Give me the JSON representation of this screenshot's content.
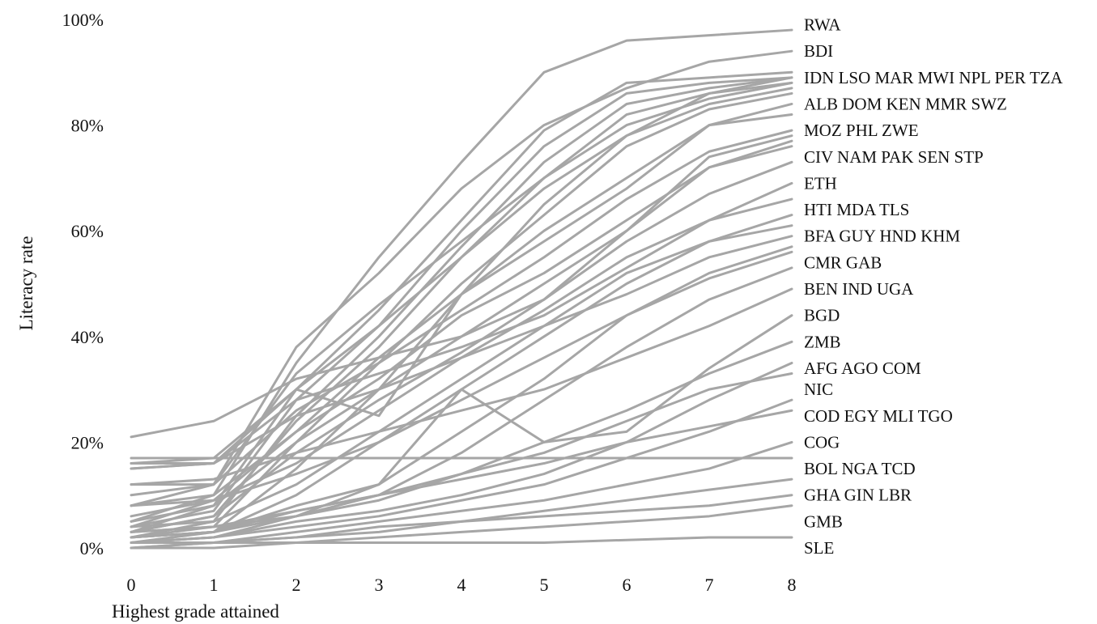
{
  "chart_data": {
    "type": "line",
    "title": "",
    "xlabel": "Highest grade attained",
    "ylabel": "Literacy rate",
    "x": [
      0,
      1,
      2,
      3,
      4,
      5,
      6,
      7,
      8
    ],
    "x_ticks": [
      "0",
      "1",
      "2",
      "3",
      "4",
      "5",
      "6",
      "7",
      "8"
    ],
    "y_ticks": [
      "0%",
      "20%",
      "40%",
      "60%",
      "80%",
      "100%"
    ],
    "xlim": [
      0,
      8
    ],
    "ylim": [
      0,
      1
    ],
    "grid": false,
    "line_color": "#a6a6a6",
    "end_labels": [
      {
        "text": "RWA",
        "y": 0.99
      },
      {
        "text": "BDI",
        "y": 0.94
      },
      {
        "text": "IDN LSO MAR MWI NPL PER TZA",
        "y": 0.89
      },
      {
        "text": "ALB DOM KEN MMR SWZ",
        "y": 0.84
      },
      {
        "text": "MOZ PHL ZWE",
        "y": 0.79
      },
      {
        "text": "CIV NAM PAK SEN STP",
        "y": 0.74
      },
      {
        "text": "ETH",
        "y": 0.69
      },
      {
        "text": "HTI MDA TLS",
        "y": 0.64
      },
      {
        "text": "BFA GUY HND KHM",
        "y": 0.59
      },
      {
        "text": "CMR GAB",
        "y": 0.54
      },
      {
        "text": "BEN IND UGA",
        "y": 0.49
      },
      {
        "text": "BGD",
        "y": 0.44
      },
      {
        "text": "ZMB",
        "y": 0.39
      },
      {
        "text": "AFG AGO COM",
        "y": 0.34
      },
      {
        "text": "NIC",
        "y": 0.3
      },
      {
        "text": "COD EGY MLI TGO",
        "y": 0.25
      },
      {
        "text": "COG",
        "y": 0.2
      },
      {
        "text": "BOL NGA TCD",
        "y": 0.15
      },
      {
        "text": "GHA GIN LBR",
        "y": 0.1
      },
      {
        "text": "GMB",
        "y": 0.05
      },
      {
        "text": "SLE",
        "y": 0.0
      }
    ],
    "series": [
      {
        "values": [
          0.05,
          0.1,
          0.35,
          0.55,
          0.73,
          0.9,
          0.96,
          0.97,
          0.98
        ]
      },
      {
        "values": [
          0.08,
          0.12,
          0.38,
          0.52,
          0.68,
          0.8,
          0.87,
          0.92,
          0.94
        ]
      },
      {
        "values": [
          0.03,
          0.08,
          0.3,
          0.45,
          0.62,
          0.79,
          0.88,
          0.89,
          0.9
        ]
      },
      {
        "values": [
          0.04,
          0.07,
          0.28,
          0.42,
          0.6,
          0.76,
          0.86,
          0.88,
          0.89
        ]
      },
      {
        "values": [
          0.02,
          0.05,
          0.25,
          0.4,
          0.57,
          0.73,
          0.84,
          0.87,
          0.89
        ]
      },
      {
        "values": [
          0.1,
          0.12,
          0.33,
          0.46,
          0.58,
          0.7,
          0.82,
          0.86,
          0.88
        ]
      },
      {
        "values": [
          0.03,
          0.06,
          0.24,
          0.38,
          0.55,
          0.7,
          0.8,
          0.85,
          0.88
        ]
      },
      {
        "values": [
          0.15,
          0.16,
          0.3,
          0.42,
          0.55,
          0.68,
          0.78,
          0.84,
          0.87
        ]
      },
      {
        "values": [
          0.01,
          0.03,
          0.15,
          0.3,
          0.48,
          0.65,
          0.78,
          0.86,
          0.89
        ]
      },
      {
        "values": [
          0.02,
          0.04,
          0.2,
          0.35,
          0.5,
          0.63,
          0.76,
          0.83,
          0.86
        ]
      },
      {
        "values": [
          0.16,
          0.17,
          0.3,
          0.25,
          0.48,
          0.6,
          0.7,
          0.8,
          0.84
        ]
      },
      {
        "values": [
          0.04,
          0.09,
          0.22,
          0.36,
          0.48,
          0.58,
          0.68,
          0.8,
          0.82
        ]
      },
      {
        "values": [
          0.21,
          0.24,
          0.32,
          0.36,
          0.4,
          0.47,
          0.6,
          0.74,
          0.78
        ]
      },
      {
        "values": [
          0.12,
          0.12,
          0.26,
          0.35,
          0.45,
          0.55,
          0.66,
          0.75,
          0.79
        ]
      },
      {
        "values": [
          0.08,
          0.1,
          0.22,
          0.32,
          0.44,
          0.52,
          0.62,
          0.72,
          0.77
        ]
      },
      {
        "values": [
          0.05,
          0.08,
          0.2,
          0.3,
          0.4,
          0.5,
          0.6,
          0.72,
          0.76
        ]
      },
      {
        "values": [
          0.03,
          0.06,
          0.18,
          0.28,
          0.37,
          0.47,
          0.58,
          0.67,
          0.73
        ]
      },
      {
        "values": [
          0.15,
          0.16,
          0.28,
          0.33,
          0.38,
          0.44,
          0.53,
          0.62,
          0.69
        ]
      },
      {
        "values": [
          0.06,
          0.09,
          0.16,
          0.26,
          0.36,
          0.45,
          0.55,
          0.62,
          0.66
        ]
      },
      {
        "values": [
          0.02,
          0.03,
          0.1,
          0.2,
          0.3,
          0.4,
          0.5,
          0.58,
          0.63
        ]
      },
      {
        "values": [
          0.04,
          0.05,
          0.12,
          0.22,
          0.32,
          0.42,
          0.52,
          0.58,
          0.61
        ]
      },
      {
        "values": [
          0.16,
          0.16,
          0.25,
          0.3,
          0.36,
          0.42,
          0.48,
          0.55,
          0.59
        ]
      },
      {
        "values": [
          0.01,
          0.02,
          0.06,
          0.12,
          0.22,
          0.32,
          0.44,
          0.52,
          0.57
        ]
      },
      {
        "values": [
          0.08,
          0.09,
          0.14,
          0.2,
          0.28,
          0.36,
          0.44,
          0.51,
          0.56
        ]
      },
      {
        "values": [
          0.02,
          0.03,
          0.07,
          0.1,
          0.18,
          0.28,
          0.38,
          0.47,
          0.53
        ]
      },
      {
        "values": [
          0.12,
          0.13,
          0.18,
          0.22,
          0.26,
          0.3,
          0.36,
          0.42,
          0.49
        ]
      },
      {
        "values": [
          0.02,
          0.03,
          0.08,
          0.12,
          0.3,
          0.2,
          0.22,
          0.34,
          0.44
        ]
      },
      {
        "values": [
          0.03,
          0.04,
          0.06,
          0.09,
          0.14,
          0.2,
          0.26,
          0.33,
          0.39
        ]
      },
      {
        "values": [
          0.01,
          0.02,
          0.05,
          0.07,
          0.1,
          0.14,
          0.2,
          0.28,
          0.35
        ]
      },
      {
        "values": [
          0.02,
          0.03,
          0.06,
          0.1,
          0.14,
          0.18,
          0.24,
          0.3,
          0.33
        ]
      },
      {
        "values": [
          0.01,
          0.02,
          0.04,
          0.06,
          0.09,
          0.12,
          0.17,
          0.22,
          0.28
        ]
      },
      {
        "values": [
          0.03,
          0.04,
          0.07,
          0.1,
          0.13,
          0.16,
          0.2,
          0.23,
          0.26
        ]
      },
      {
        "values": [
          0.01,
          0.01,
          0.03,
          0.05,
          0.07,
          0.09,
          0.12,
          0.15,
          0.2
        ]
      },
      {
        "values": [
          0.17,
          0.17,
          0.17,
          0.17,
          0.17,
          0.17,
          0.17,
          0.17,
          0.17
        ]
      },
      {
        "values": [
          0.0,
          0.01,
          0.02,
          0.03,
          0.05,
          0.07,
          0.09,
          0.11,
          0.13
        ]
      },
      {
        "values": [
          0.01,
          0.01,
          0.02,
          0.04,
          0.05,
          0.06,
          0.07,
          0.08,
          0.1
        ]
      },
      {
        "values": [
          0.0,
          0.01,
          0.01,
          0.02,
          0.03,
          0.04,
          0.05,
          0.06,
          0.08
        ]
      },
      {
        "values": [
          0.0,
          0.0,
          0.01,
          0.01,
          0.01,
          0.01,
          0.015,
          0.02,
          0.02
        ]
      }
    ]
  }
}
